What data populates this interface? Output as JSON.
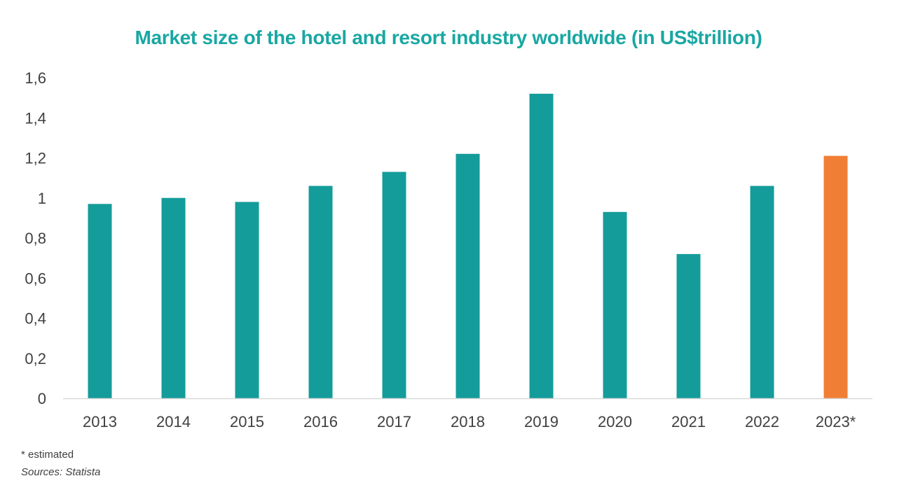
{
  "colors": {
    "title": "#19a7a2",
    "bar": "#149c9b",
    "highlight_bar": "#f07f35",
    "axis": "#d9d9d9",
    "text": "#404040"
  },
  "chart_data": {
    "type": "bar",
    "title": "Market size of the hotel and resort industry worldwide (in US$trillion)",
    "xlabel": "",
    "ylabel": "",
    "categories": [
      "2013",
      "2014",
      "2015",
      "2016",
      "2017",
      "2018",
      "2019",
      "2020",
      "2021",
      "2022",
      "2023*"
    ],
    "values": [
      0.97,
      1.0,
      0.98,
      1.06,
      1.13,
      1.22,
      1.52,
      0.93,
      0.72,
      1.06,
      1.21
    ],
    "highlight": [
      "2023*"
    ],
    "ylim": [
      0,
      1.6
    ],
    "yticks": [
      0,
      0.2,
      0.4,
      0.6,
      0.8,
      1,
      1.2,
      1.4,
      1.6
    ],
    "ytick_labels": [
      "0",
      "0,2",
      "0,4",
      "0,6",
      "0,8",
      "1",
      "1,2",
      "1,4",
      "1,6"
    ],
    "grid": false,
    "legend": "none"
  },
  "footnote": "* estimated",
  "source": "Sources: Statista"
}
